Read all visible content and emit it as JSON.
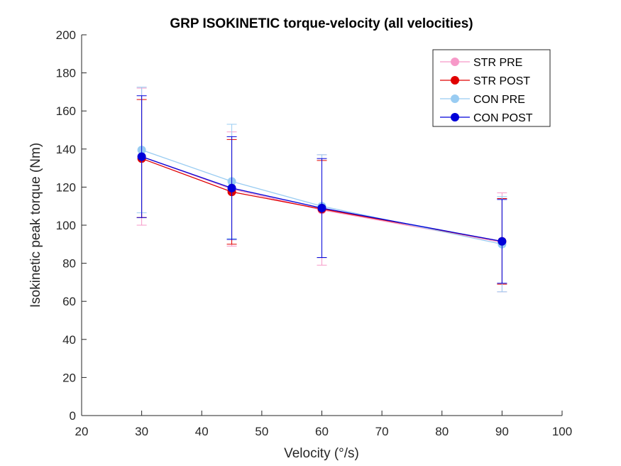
{
  "chart_data": {
    "type": "line",
    "title": "GRP ISOKINETIC torque-velocity (all velocities)",
    "xlabel": "Velocity (°/s)",
    "ylabel": "Isokinetic peak torque (Nm)",
    "xlim": [
      20,
      100
    ],
    "ylim": [
      0,
      200
    ],
    "xticks": [
      20,
      30,
      40,
      50,
      60,
      70,
      80,
      90,
      100
    ],
    "yticks": [
      0,
      20,
      40,
      60,
      80,
      100,
      120,
      140,
      160,
      180,
      200
    ],
    "grid": false,
    "legend_position": "top-right",
    "x": [
      30,
      45,
      60,
      90
    ],
    "series": [
      {
        "name": "STR PRE",
        "color": "#f799c8",
        "values": [
          136,
          119,
          108,
          91
        ],
        "error": [
          36,
          30,
          29,
          26
        ]
      },
      {
        "name": "STR POST",
        "color": "#e00000",
        "values": [
          135,
          117.5,
          108.5,
          91.5
        ],
        "error": [
          31,
          27.5,
          25.5,
          22.5
        ]
      },
      {
        "name": "CON PRE",
        "color": "#99ccf2",
        "values": [
          139.5,
          123,
          110,
          90
        ],
        "error": [
          33,
          30,
          27,
          25
        ]
      },
      {
        "name": "CON POST",
        "color": "#0000d9",
        "values": [
          136,
          119.5,
          109,
          91.5
        ],
        "error": [
          32,
          27,
          26,
          22
        ]
      }
    ]
  }
}
